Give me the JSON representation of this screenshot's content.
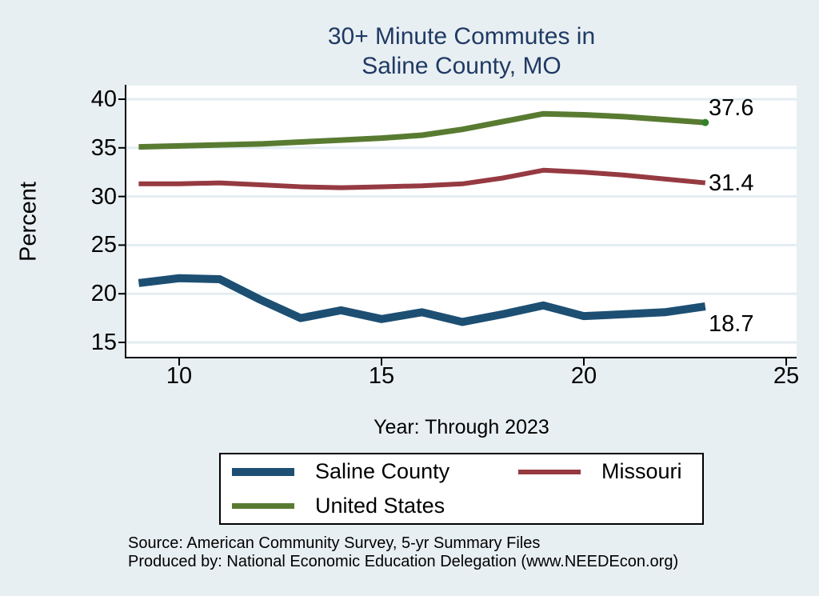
{
  "title": {
    "line1": "30+ Minute Commutes in",
    "line2": "Saline County, MO"
  },
  "footer": {
    "line1": "Source: American Community Survey, 5-yr Summary Files",
    "line2": "Produced by: National Economic Education Delegation (www.NEEDEcon.org)"
  },
  "colors": {
    "background": "#e8eff2",
    "plot_background": "#ffffff",
    "gridline": "#e3edf2",
    "axis": "#000000",
    "title_text": "#203a64",
    "end_dot": "#33822b"
  },
  "chart_data": {
    "type": "line",
    "title": "30+ Minute Commutes in Saline County, MO",
    "xlabel": "Year: Through 2023",
    "ylabel": "Percent",
    "x": [
      9,
      10,
      11,
      12,
      13,
      14,
      15,
      16,
      17,
      18,
      19,
      20,
      21,
      22,
      23
    ],
    "x_ticks": [
      10,
      15,
      20,
      25
    ],
    "y_ticks": [
      40,
      35,
      30,
      25,
      20,
      15
    ],
    "xlim": [
      8.7,
      25.25
    ],
    "ylim": [
      13.6,
      41.4
    ],
    "grid": "horizontal",
    "legend_position": "bottom",
    "series": [
      {
        "name": "Saline County",
        "color": "#1d4f73",
        "stroke_width": 10,
        "end_label": "18.7",
        "end_dot": false,
        "values": [
          21.1,
          21.6,
          21.5,
          19.4,
          17.5,
          18.3,
          17.4,
          18.1,
          17.1,
          17.9,
          18.8,
          17.7,
          17.9,
          18.1,
          18.7
        ]
      },
      {
        "name": "Missouri",
        "color": "#963a41",
        "stroke_width": 6,
        "end_label": "31.4",
        "end_dot": false,
        "values": [
          31.3,
          31.3,
          31.4,
          31.2,
          31.0,
          30.9,
          31.0,
          31.1,
          31.3,
          31.9,
          32.7,
          32.5,
          32.2,
          31.8,
          31.4
        ]
      },
      {
        "name": "United States",
        "color": "#587b31",
        "stroke_width": 7,
        "end_label": "37.6",
        "end_dot": true,
        "values": [
          35.1,
          35.2,
          35.3,
          35.4,
          35.6,
          35.8,
          36.0,
          36.3,
          36.9,
          37.7,
          38.5,
          38.4,
          38.2,
          37.9,
          37.6
        ]
      }
    ]
  }
}
